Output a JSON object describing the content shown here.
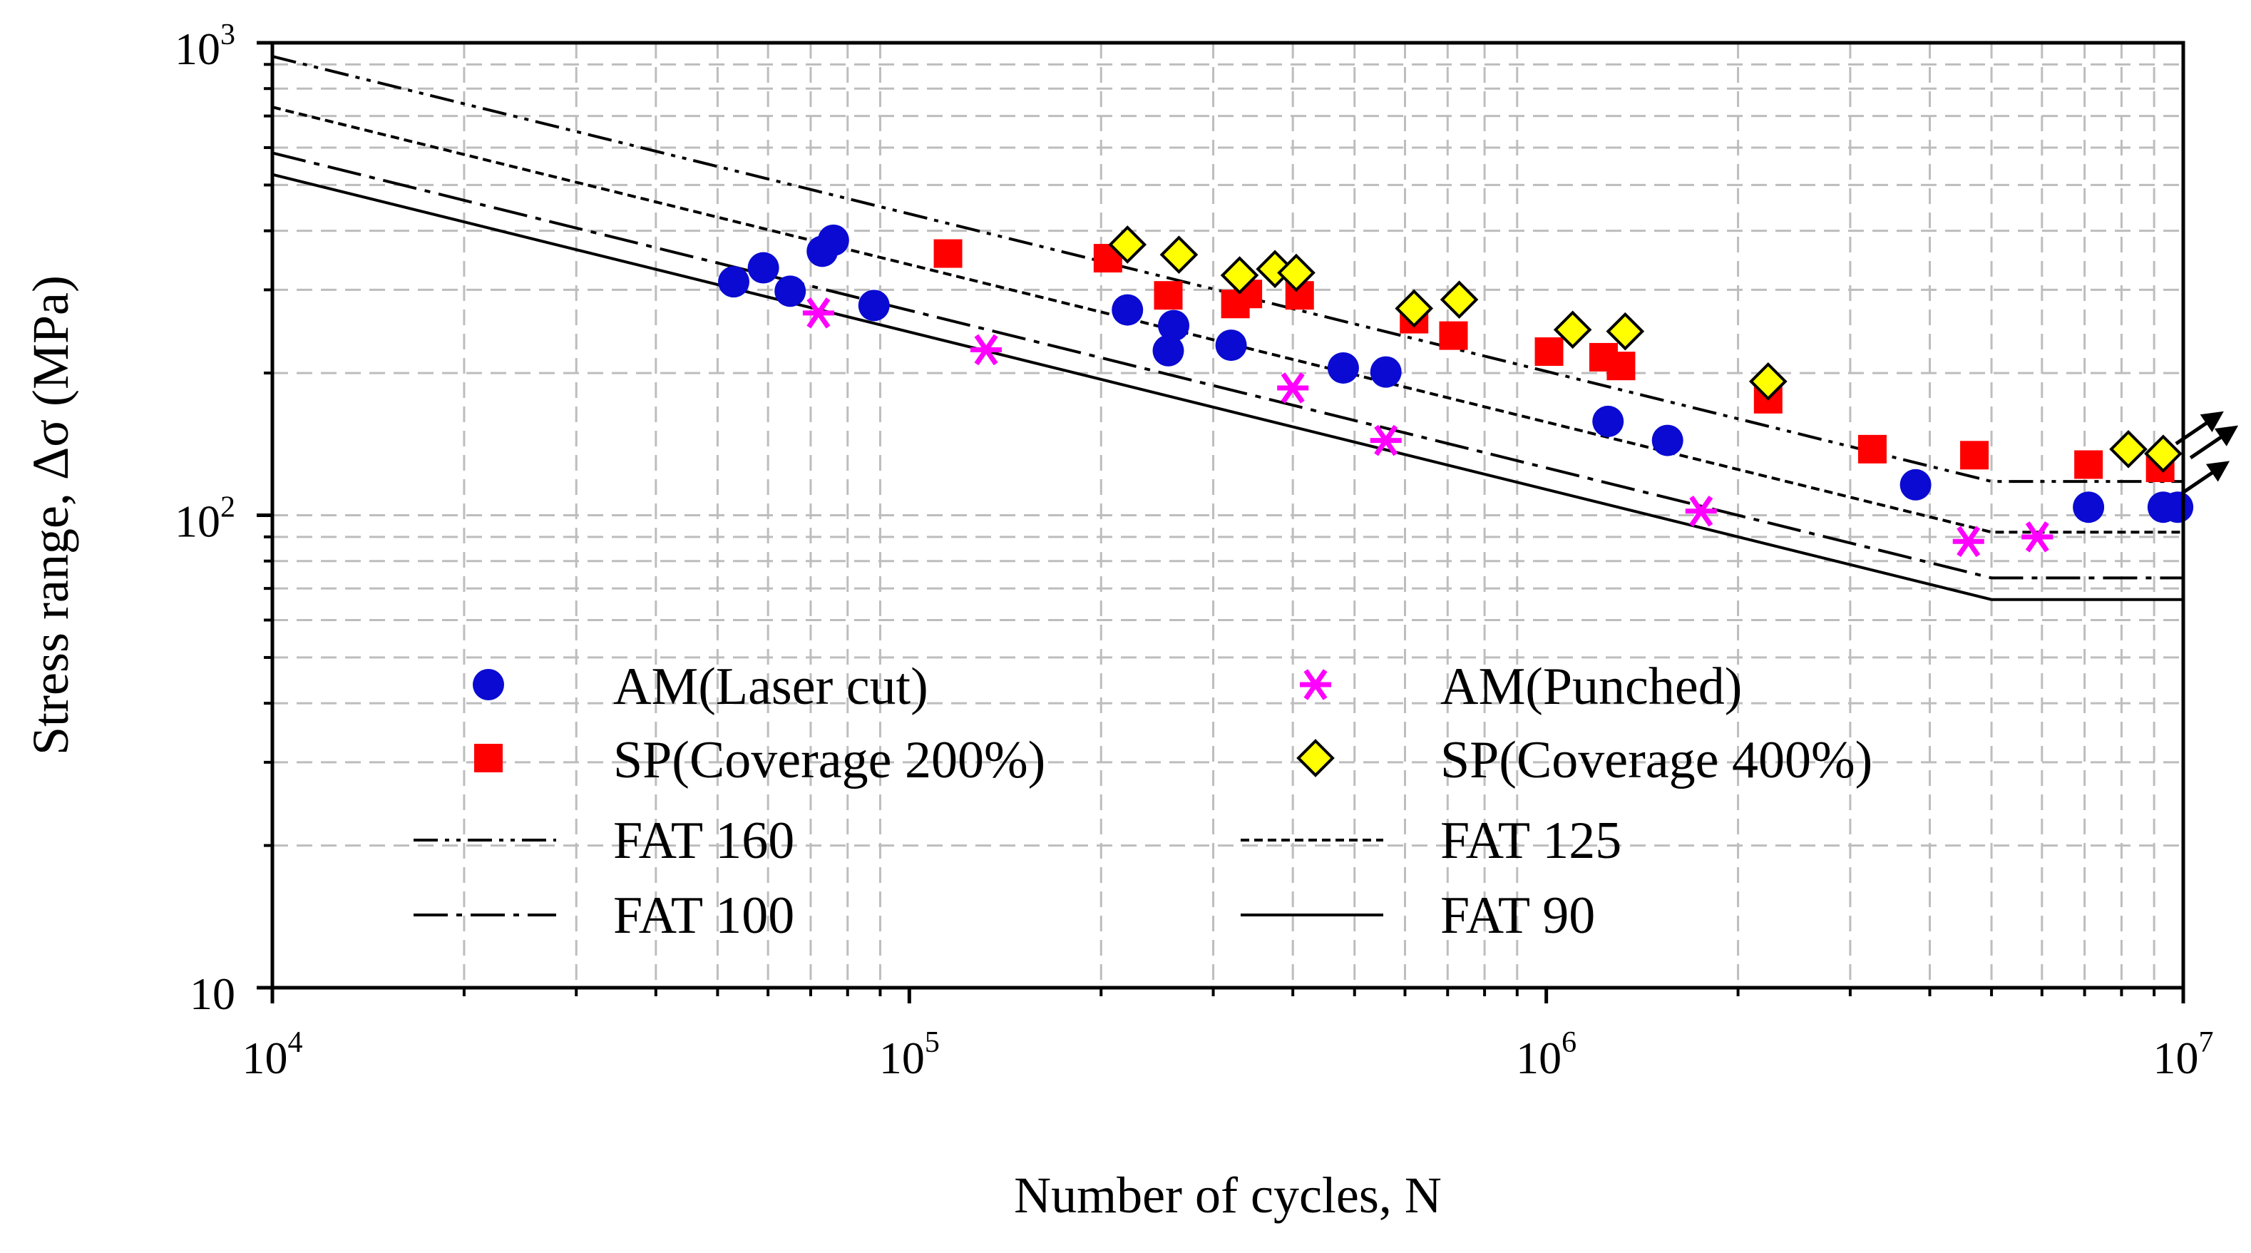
{
  "chart_data": {
    "type": "scatter",
    "xlabel": "Number of cycles, N",
    "ylabel": "Stress range, Δσ (MPa)",
    "x_scale": "log",
    "y_scale": "log",
    "xlim": [
      10000,
      10000000
    ],
    "ylim": [
      10,
      1000
    ],
    "grid": true,
    "legend_placement": "lower-center",
    "x_ticks": [
      {
        "base": "10",
        "exp": "4",
        "value": 10000
      },
      {
        "base": "10",
        "exp": "5",
        "value": 100000
      },
      {
        "base": "10",
        "exp": "6",
        "value": 1000000
      },
      {
        "base": "10",
        "exp": "7",
        "value": 10000000
      }
    ],
    "y_ticks": [
      {
        "base": "10",
        "exp": "",
        "value": 10
      },
      {
        "base": "10",
        "exp": "2",
        "value": 100
      },
      {
        "base": "10",
        "exp": "3",
        "value": 1000
      }
    ],
    "series": [
      {
        "name": "AM(Laser cut)",
        "marker": "circle",
        "color": "#0a0ad2",
        "points": [
          [
            53000,
            312
          ],
          [
            59000,
            334
          ],
          [
            65000,
            298
          ],
          [
            73000,
            362
          ],
          [
            76000,
            382
          ],
          [
            88000,
            278
          ],
          [
            220000,
            272
          ],
          [
            260000,
            252
          ],
          [
            255000,
            223
          ],
          [
            320000,
            229
          ],
          [
            480000,
            205
          ],
          [
            560000,
            201
          ],
          [
            1250000,
            158
          ],
          [
            1550000,
            144
          ],
          [
            3800000,
            116
          ],
          [
            7100000,
            104
          ],
          [
            9300000,
            104
          ],
          [
            9800000,
            104
          ]
        ]
      },
      {
        "name": "AM(Punched)",
        "marker": "asterisk",
        "color": "#ff00ff",
        "points": [
          [
            72000,
            268
          ],
          [
            132000,
            224
          ],
          [
            400000,
            186
          ],
          [
            560000,
            144
          ],
          [
            1750000,
            102
          ],
          [
            4600000,
            88
          ],
          [
            5900000,
            90
          ]
        ]
      },
      {
        "name": "SP(Coverage 200%)",
        "marker": "square",
        "color": "#ff0000",
        "points": [
          [
            115000,
            358
          ],
          [
            205000,
            350
          ],
          [
            255000,
            292
          ],
          [
            325000,
            280
          ],
          [
            340000,
            294
          ],
          [
            410000,
            292
          ],
          [
            620000,
            260
          ],
          [
            715000,
            240
          ],
          [
            1010000,
            222
          ],
          [
            1230000,
            216
          ],
          [
            1310000,
            207
          ],
          [
            2230000,
            176
          ],
          [
            3250000,
            138
          ],
          [
            4700000,
            134
          ],
          [
            7100000,
            128
          ],
          [
            9200000,
            126
          ]
        ]
      },
      {
        "name": "SP(Coverage 400%)",
        "marker": "diamond",
        "color": "#ffff00",
        "points": [
          [
            220000,
            374
          ],
          [
            265000,
            356
          ],
          [
            330000,
            322
          ],
          [
            375000,
            332
          ],
          [
            405000,
            326
          ],
          [
            620000,
            274
          ],
          [
            730000,
            286
          ],
          [
            1100000,
            247
          ],
          [
            1330000,
            245
          ],
          [
            2230000,
            192
          ],
          [
            8200000,
            138
          ],
          [
            9300000,
            135
          ]
        ]
      }
    ],
    "runouts": [
      {
        "x": 9300000,
        "y": 135
      },
      {
        "x": 9800000,
        "y": 126
      },
      {
        "x": 9500000,
        "y": 106
      }
    ],
    "fat_curves": [
      {
        "name": "FAT 160",
        "fat": 160,
        "dash": "long-dash-double-dot"
      },
      {
        "name": "FAT 125",
        "fat": 125,
        "dash": "short-dash"
      },
      {
        "name": "FAT 100",
        "fat": 100,
        "dash": "long-dash-dot"
      },
      {
        "name": "FAT 90",
        "fat": 90,
        "dash": "solid"
      }
    ],
    "fat_curve_slope_m": 3,
    "fat_curve_reference_cycles": 2000000,
    "fat_curve_knee_cycles": 5000000
  }
}
